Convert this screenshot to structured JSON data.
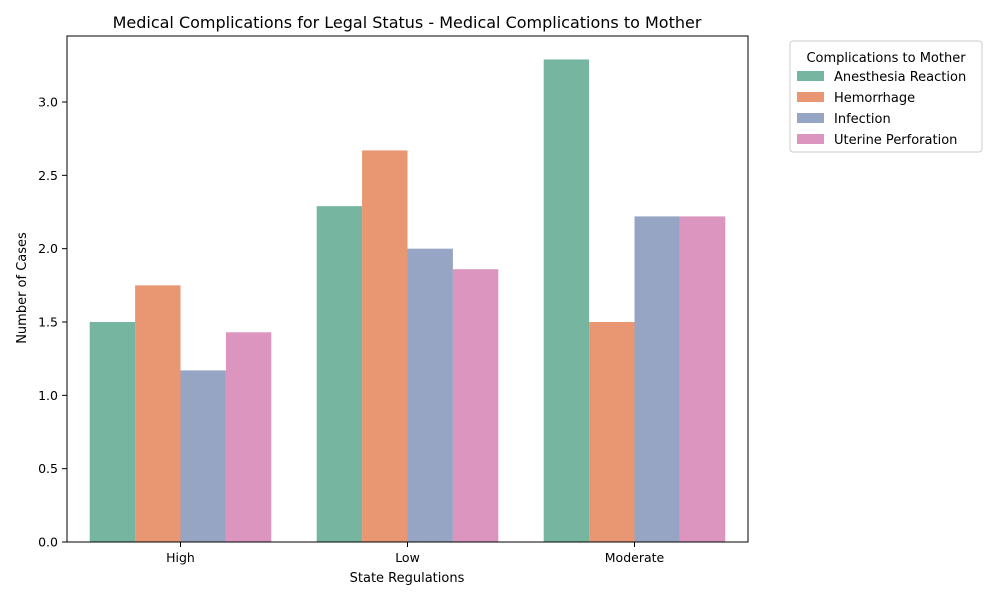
{
  "chart_data": {
    "type": "bar",
    "title": "Medical Complications for Legal Status - Medical Complications to Mother",
    "xlabel": "State Regulations",
    "ylabel": "Number of Cases",
    "categories": [
      "High",
      "Low",
      "Moderate"
    ],
    "ylim": [
      0,
      3.45
    ],
    "yticks": [
      "0.0",
      "0.5",
      "1.0",
      "1.5",
      "2.0",
      "2.5",
      "3.0"
    ],
    "grid": false,
    "legend": {
      "title": "Complications to Mother",
      "placement": "outside-top-right"
    },
    "series": [
      {
        "name": "Anesthesia Reaction",
        "color": "#76b5a0",
        "values": [
          1.5,
          2.29,
          3.29
        ]
      },
      {
        "name": "Hemorrhage",
        "color": "#e99673",
        "values": [
          1.75,
          2.67,
          1.5
        ]
      },
      {
        "name": "Infection",
        "color": "#96a5c3",
        "values": [
          1.17,
          2.0,
          2.22
        ]
      },
      {
        "name": "Uterine Perforation",
        "color": "#db95bf",
        "values": [
          1.43,
          1.86,
          2.22
        ]
      }
    ]
  }
}
